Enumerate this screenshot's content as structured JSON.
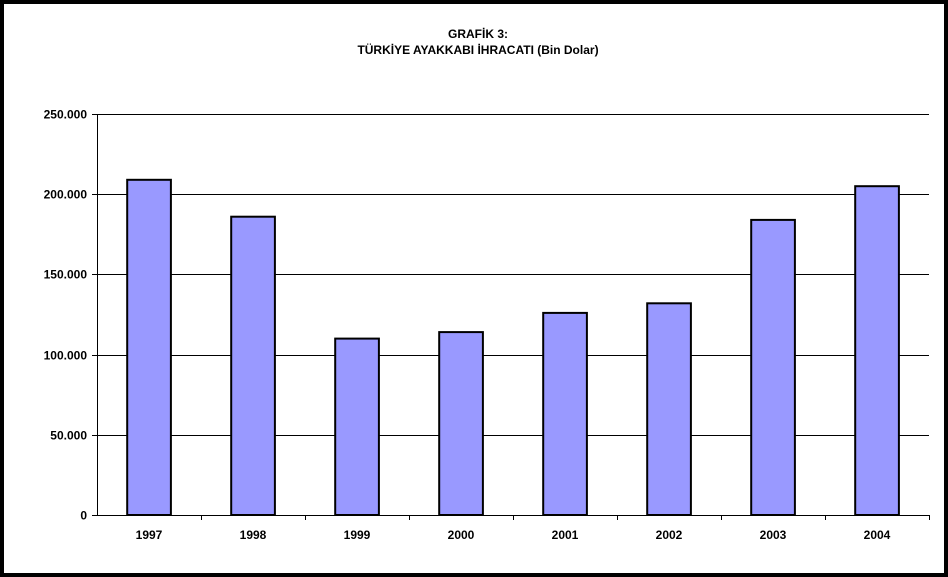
{
  "chart_data": {
    "type": "bar",
    "title": "GRAFİK 3:",
    "subtitle": "TÜRKİYE AYAKKABI İHRACATI (Bin Dolar)",
    "categories": [
      "1997",
      "1998",
      "1999",
      "2000",
      "2001",
      "2002",
      "2003",
      "2004"
    ],
    "values": [
      209000,
      186000,
      110000,
      114000,
      126000,
      132000,
      184000,
      205000
    ],
    "ylim": [
      0,
      250000
    ],
    "yticks": [
      0,
      50000,
      100000,
      150000,
      200000,
      250000
    ],
    "ytick_labels": [
      "0",
      "50.000",
      "100.000",
      "150.000",
      "200.000",
      "250.000"
    ],
    "grid": true,
    "legend": "none",
    "xlabel": "",
    "ylabel": "",
    "bar_color": "#9999FF",
    "bar_outline_color": "#000000",
    "grid_color": "#000000",
    "frame_color": "#000000"
  }
}
